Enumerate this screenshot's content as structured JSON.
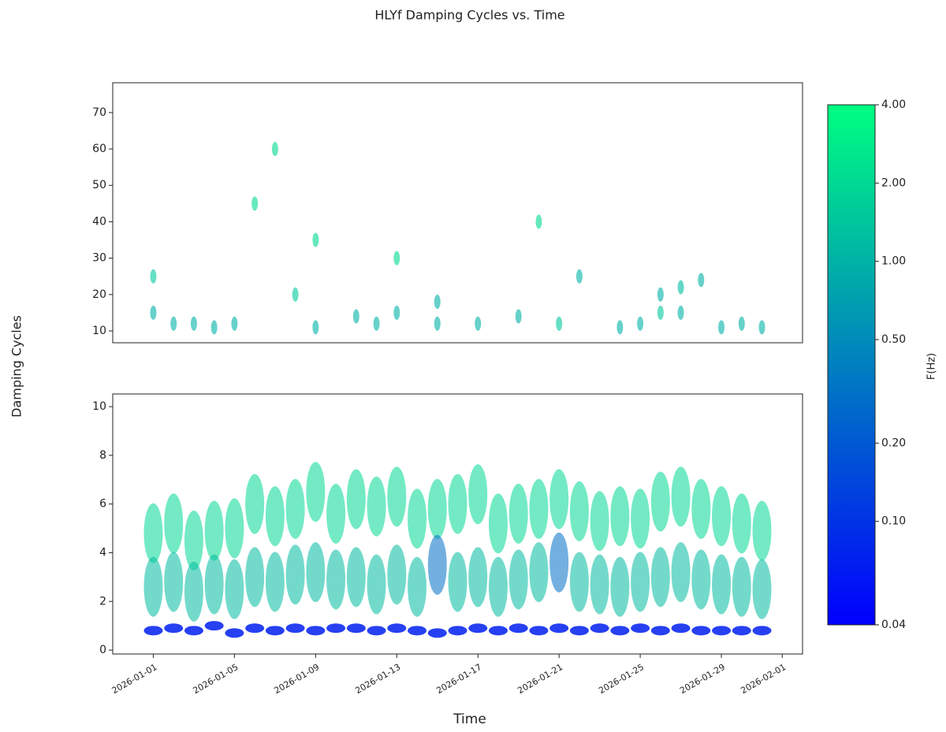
{
  "chart_data": {
    "type": "scatter",
    "title": "HLYf Damping Cycles vs. Time",
    "ylabel": "Damping Cycles",
    "xlabel": "Time",
    "xlim": [
      "2025-12-30",
      "2026-02-02"
    ],
    "xticks": [
      "2026-01-01",
      "2026-01-05",
      "2026-01-09",
      "2026-01-13",
      "2026-01-17",
      "2026-01-21",
      "2026-01-25",
      "2026-01-29",
      "2026-02-01"
    ],
    "colorbar": {
      "label": "F(Hz)",
      "scale": "log",
      "clim": [
        0.04,
        4
      ],
      "cmap": [
        "#0000ff",
        "#00ff80"
      ],
      "ticks": [
        {
          "value": 4,
          "label": "4.00"
        },
        {
          "value": 2,
          "label": "2.00"
        },
        {
          "value": 1,
          "label": "1.00"
        },
        {
          "value": 0.5,
          "label": "0.50"
        },
        {
          "value": 0.2,
          "label": "0.20"
        },
        {
          "value": 0.1,
          "label": "0.10"
        },
        0.04
      ]
    },
    "panels": [
      {
        "ylim": [
          6.75,
          78.2
        ],
        "yticks": [
          10,
          20,
          30,
          40,
          50,
          60,
          70
        ],
        "x": [
          "2026-01-01",
          "2026-01-01",
          "2026-01-02",
          "2026-01-03",
          "2026-01-04",
          "2026-01-05",
          "2026-01-06",
          "2026-01-07",
          "2026-01-08",
          "2026-01-09",
          "2026-01-09",
          "2026-01-11",
          "2026-01-12",
          "2026-01-13",
          "2026-01-13",
          "2026-01-15",
          "2026-01-15",
          "2026-01-17",
          "2026-01-19",
          "2026-01-20",
          "2026-01-21",
          "2026-01-22",
          "2026-01-24",
          "2026-01-25",
          "2026-01-26",
          "2026-01-26",
          "2026-01-27",
          "2026-01-27",
          "2026-01-28",
          "2026-01-29",
          "2026-01-30",
          "2026-01-31"
        ],
        "y": [
          15,
          25,
          12,
          12,
          11,
          12,
          45,
          60,
          20,
          35,
          11,
          14,
          12,
          15,
          30,
          18,
          12,
          12,
          14,
          40,
          12,
          25,
          11,
          12,
          20,
          15,
          22,
          15,
          24,
          11,
          12,
          11
        ],
        "f": [
          1,
          1.5,
          1,
          1,
          1,
          1,
          2,
          2,
          1.5,
          2,
          1,
          1,
          1,
          1,
          2,
          1,
          1,
          1,
          1,
          2,
          1.5,
          1,
          1,
          1,
          1,
          1.5,
          1.2,
          1,
          1,
          1,
          1,
          1
        ]
      },
      {
        "ylim": [
          -0.16,
          10.52
        ],
        "yticks": [
          0,
          2,
          4,
          6,
          8,
          10
        ],
        "x": [
          "2026-01-01",
          "2026-01-02",
          "2026-01-03",
          "2026-01-04",
          "2026-01-05",
          "2026-01-06",
          "2026-01-07",
          "2026-01-08",
          "2026-01-09",
          "2026-01-10",
          "2026-01-11",
          "2026-01-12",
          "2026-01-13",
          "2026-01-14",
          "2026-01-15",
          "2026-01-16",
          "2026-01-17",
          "2026-01-18",
          "2026-01-19",
          "2026-01-20",
          "2026-01-21",
          "2026-01-22",
          "2026-01-23",
          "2026-01-24",
          "2026-01-25",
          "2026-01-26",
          "2026-01-27",
          "2026-01-28",
          "2026-01-29",
          "2026-01-30",
          "2026-01-31"
        ],
        "y": [
          [
            4.8,
            2.6,
            0.8
          ],
          [
            5.2,
            2.8,
            0.9
          ],
          [
            4.5,
            2.4,
            0.8
          ],
          [
            4.9,
            2.7,
            1.0
          ],
          [
            5.0,
            2.5,
            0.7
          ],
          [
            6.0,
            3.0,
            0.9
          ],
          [
            5.5,
            2.8,
            0.8
          ],
          [
            5.8,
            3.1,
            0.9
          ],
          [
            6.5,
            3.2,
            0.8
          ],
          [
            5.6,
            2.9,
            0.9
          ],
          [
            6.2,
            3.0,
            0.9
          ],
          [
            5.9,
            2.7,
            0.8
          ],
          [
            6.3,
            3.1,
            0.9
          ],
          [
            5.4,
            2.6,
            0.8
          ],
          [
            5.8,
            3.5,
            0.7
          ],
          [
            6.0,
            2.8,
            0.8
          ],
          [
            6.4,
            3.0,
            0.9
          ],
          [
            5.2,
            2.6,
            0.8
          ],
          [
            5.6,
            2.9,
            0.9
          ],
          [
            5.8,
            3.2,
            0.8
          ],
          [
            6.2,
            3.6,
            0.9
          ],
          [
            5.7,
            2.8,
            0.8
          ],
          [
            5.3,
            2.7,
            0.9
          ],
          [
            5.5,
            2.6,
            0.8
          ],
          [
            5.4,
            2.8,
            0.9
          ],
          [
            6.1,
            3.0,
            0.8
          ],
          [
            6.3,
            3.2,
            0.9
          ],
          [
            5.8,
            2.9,
            0.8
          ],
          [
            5.5,
            2.7,
            0.8
          ],
          [
            5.2,
            2.6,
            0.8
          ],
          [
            4.9,
            2.5,
            0.8
          ]
        ],
        "f": [
          [
            2,
            1.2,
            0.07
          ],
          [
            2,
            1.2,
            0.07
          ],
          [
            2,
            1.2,
            0.07
          ],
          [
            2,
            1.2,
            0.07
          ],
          [
            2,
            1.2,
            0.07
          ],
          [
            2,
            1.2,
            0.07
          ],
          [
            2,
            1.2,
            0.07
          ],
          [
            2,
            1.2,
            0.07
          ],
          [
            2,
            1.2,
            0.07
          ],
          [
            2,
            1.2,
            0.07
          ],
          [
            2,
            1.2,
            0.07
          ],
          [
            2,
            1.2,
            0.07
          ],
          [
            2,
            1.2,
            0.07
          ],
          [
            2,
            1.2,
            0.07
          ],
          [
            2,
            0.3,
            0.07
          ],
          [
            2,
            1.2,
            0.07
          ],
          [
            2,
            1.2,
            0.07
          ],
          [
            2,
            1.2,
            0.07
          ],
          [
            2,
            1.2,
            0.07
          ],
          [
            2,
            1.2,
            0.07
          ],
          [
            2,
            0.3,
            0.07
          ],
          [
            2,
            1.2,
            0.07
          ],
          [
            2,
            1.2,
            0.07
          ],
          [
            2,
            1.2,
            0.07
          ],
          [
            2,
            1.2,
            0.07
          ],
          [
            2,
            1.2,
            0.07
          ],
          [
            2,
            1.2,
            0.07
          ],
          [
            2,
            1.2,
            0.07
          ],
          [
            2,
            1.2,
            0.07
          ],
          [
            2,
            1.2,
            0.07
          ],
          [
            2,
            1.2,
            0.07
          ]
        ]
      }
    ]
  }
}
